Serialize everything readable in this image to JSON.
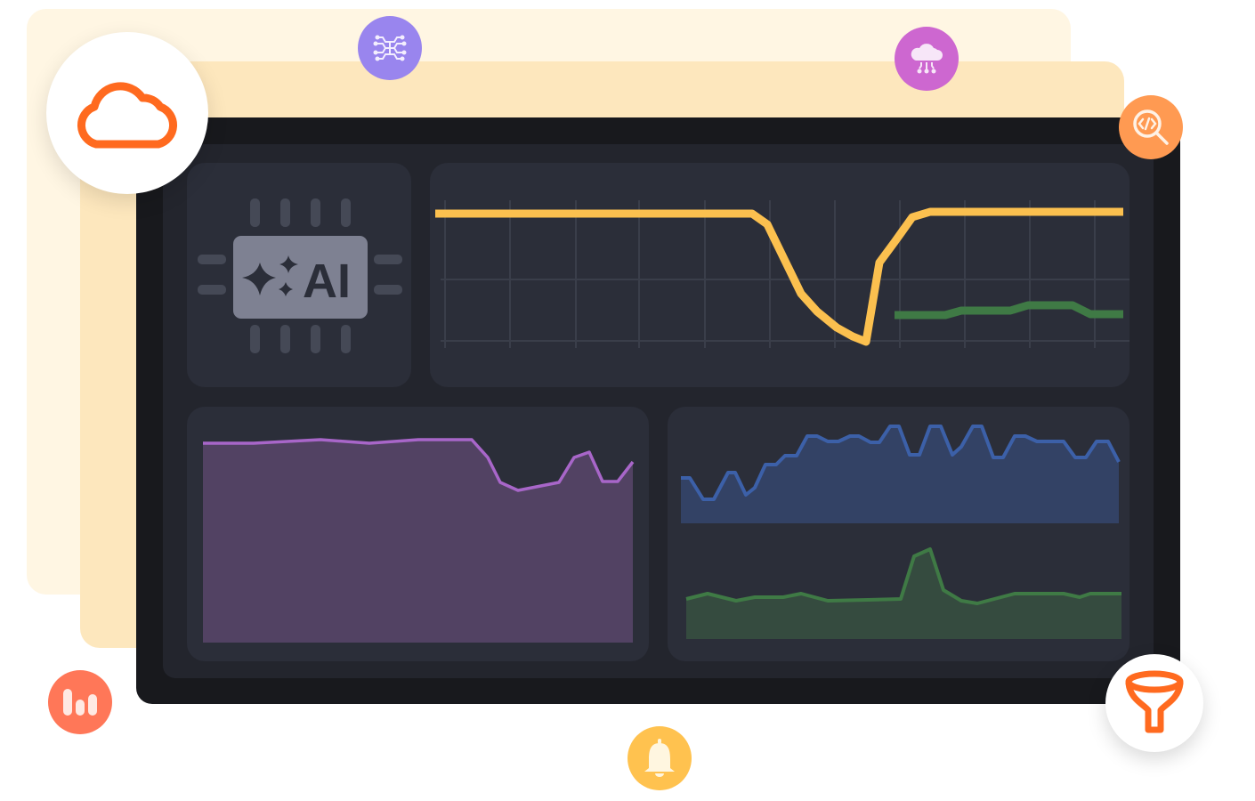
{
  "chip": {
    "label": "AI"
  },
  "colors": {
    "background_card_light": "#fff6e3",
    "background_card": "#fde7bd",
    "frame": "#18191d",
    "panel": "#2b2e39",
    "line_yellow": "#fbc04f",
    "line_green": "#3f7a45",
    "line_purple": "#a866c9",
    "line_blue": "#3c60a8",
    "cloud_orange": "#ff6a1f"
  },
  "icons": [
    "cloud-icon",
    "neural-network-icon",
    "cloud-computing-icon",
    "code-search-icon",
    "bar-chart-icon",
    "bell-icon",
    "funnel-icon",
    "ai-chip-icon"
  ]
}
